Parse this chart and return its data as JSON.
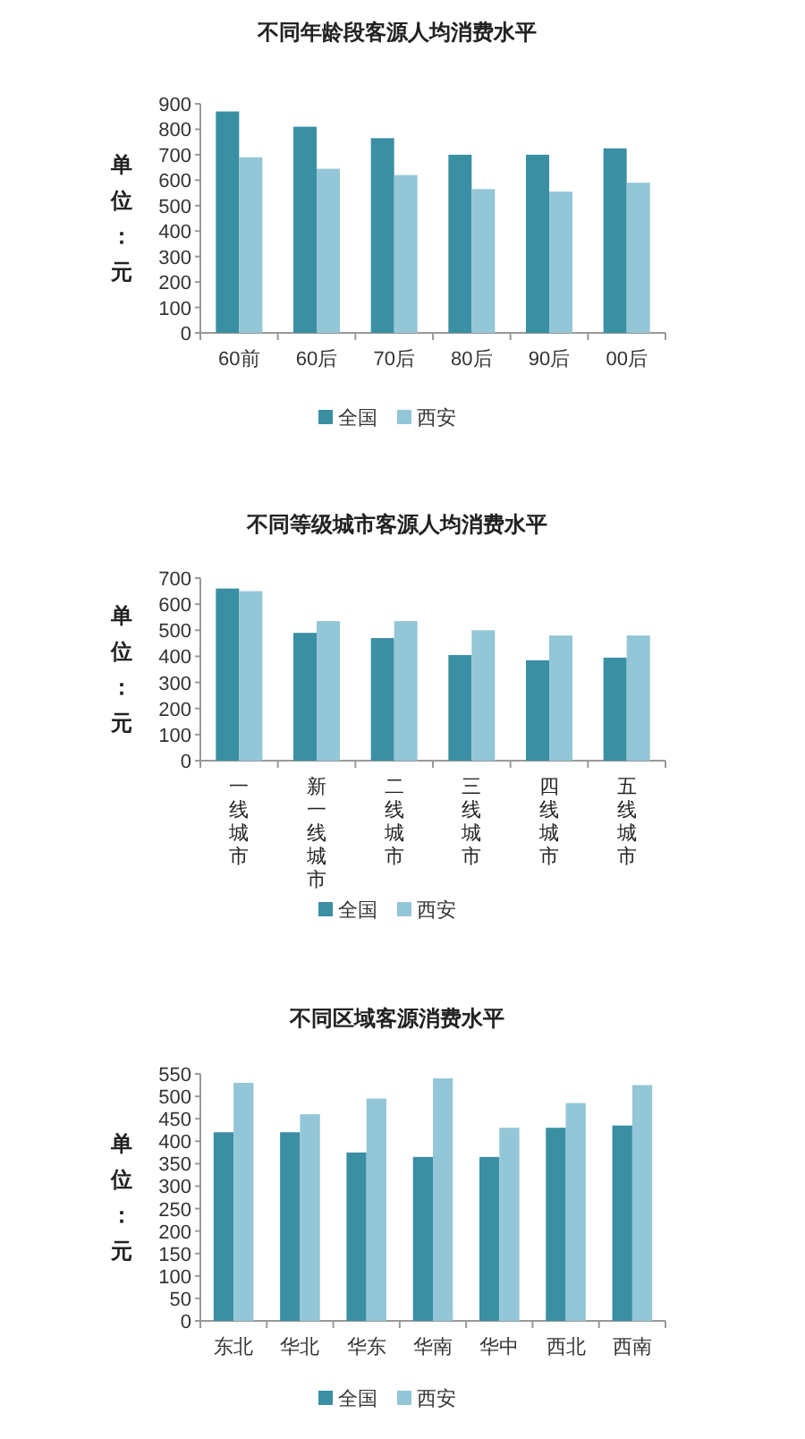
{
  "chart_data": [
    {
      "type": "bar",
      "title": "不同年龄段客源人均消费水平",
      "ylabel": "单位：元",
      "categories": [
        "60前",
        "60后",
        "70后",
        "80后",
        "90后",
        "00后"
      ],
      "series": [
        {
          "name": "全国",
          "color": "#3a8fa3",
          "values": [
            870,
            810,
            765,
            700,
            700,
            725
          ]
        },
        {
          "name": "西安",
          "color": "#93c6d6",
          "values": [
            690,
            645,
            620,
            565,
            555,
            590
          ]
        }
      ],
      "ylim": [
        0,
        900
      ],
      "yticks": [
        0,
        100,
        200,
        300,
        400,
        500,
        600,
        700,
        800,
        900
      ],
      "legend": "bottom",
      "grid": false
    },
    {
      "type": "bar",
      "title": "不同等级城市客源人均消费水平",
      "ylabel": "单位：元",
      "categories": [
        "一线城市",
        "新一线城市",
        "二线城市",
        "三线城市",
        "四线城市",
        "五线城市"
      ],
      "series": [
        {
          "name": "全国",
          "color": "#3a8fa3",
          "values": [
            660,
            490,
            470,
            405,
            385,
            395
          ]
        },
        {
          "name": "西安",
          "color": "#93c6d6",
          "values": [
            650,
            535,
            535,
            500,
            480,
            480
          ]
        }
      ],
      "ylim": [
        0,
        700
      ],
      "yticks": [
        0,
        100,
        200,
        300,
        400,
        500,
        600,
        700
      ],
      "legend": "bottom",
      "grid": false
    },
    {
      "type": "bar",
      "title": "不同区域客源消费水平",
      "ylabel": "单位：元",
      "categories": [
        "东北",
        "华北",
        "华东",
        "华南",
        "华中",
        "西北",
        "西南"
      ],
      "series": [
        {
          "name": "全国",
          "color": "#3a8fa3",
          "values": [
            420,
            420,
            375,
            365,
            365,
            430,
            435
          ]
        },
        {
          "name": "西安",
          "color": "#93c6d6",
          "values": [
            530,
            460,
            495,
            540,
            430,
            485,
            525
          ]
        }
      ],
      "ylim": [
        0,
        550
      ],
      "yticks": [
        0,
        50,
        100,
        150,
        200,
        250,
        300,
        350,
        400,
        450,
        500,
        550
      ],
      "legend": "bottom",
      "grid": false
    }
  ]
}
